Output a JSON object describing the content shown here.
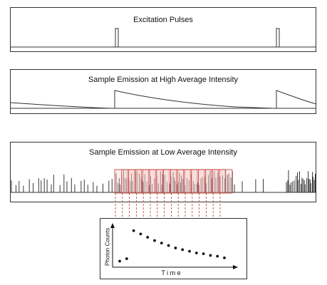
{
  "panels": {
    "excitation": {
      "title": "Excitation Pulses"
    },
    "high": {
      "title": "Sample Emission at High Average Intensity"
    },
    "low": {
      "title": "Sample Emission at Low Average Intensity"
    }
  },
  "inset": {
    "ylabel": "Photon Counts",
    "xlabel": "T i m e"
  },
  "chart_data": {
    "type": "scatter",
    "title": "",
    "xlabel": "T i m e",
    "ylabel": "Photon Counts",
    "x": [
      1,
      2,
      3,
      4,
      5,
      6,
      7,
      8,
      9,
      10,
      11,
      12,
      13,
      14,
      15,
      16
    ],
    "values": [
      0.3,
      0.6,
      4.0,
      3.6,
      3.2,
      2.8,
      2.5,
      2.2,
      1.9,
      1.7,
      1.5,
      1.3,
      1.2,
      1.0,
      0.9,
      0.7
    ],
    "colors": {
      "marker": "#111111",
      "guide": "#c0392b",
      "box_fill": "#f4c6c6",
      "box_stroke": "#c0392b"
    }
  }
}
